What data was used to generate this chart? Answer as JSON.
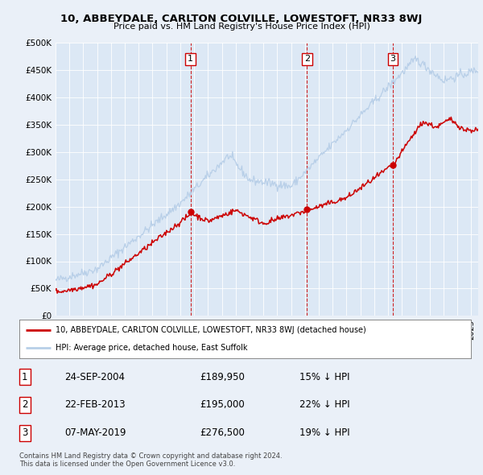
{
  "title1": "10, ABBEYDALE, CARLTON COLVILLE, LOWESTOFT, NR33 8WJ",
  "title2": "Price paid vs. HM Land Registry's House Price Index (HPI)",
  "hpi_label": "HPI: Average price, detached house, East Suffolk",
  "property_label": "10, ABBEYDALE, CARLTON COLVILLE, LOWESTOFT, NR33 8WJ (detached house)",
  "hpi_color": "#b8cfe8",
  "property_color": "#cc0000",
  "background_color": "#eaf0f8",
  "plot_bg_color": "#dce8f5",
  "sale_year_nums": [
    2004.733,
    2013.143,
    2019.352
  ],
  "sale_prices": [
    189950,
    195000,
    276500
  ],
  "sale_labels": [
    "1",
    "2",
    "3"
  ],
  "sale_info": [
    [
      "1",
      "24-SEP-2004",
      "£189,950",
      "15% ↓ HPI"
    ],
    [
      "2",
      "22-FEB-2013",
      "£195,000",
      "22% ↓ HPI"
    ],
    [
      "3",
      "07-MAY-2019",
      "£276,500",
      "19% ↓ HPI"
    ]
  ],
  "footer1": "Contains HM Land Registry data © Crown copyright and database right 2024.",
  "footer2": "This data is licensed under the Open Government Licence v3.0.",
  "ylim": [
    0,
    500000
  ],
  "yticks": [
    0,
    50000,
    100000,
    150000,
    200000,
    250000,
    300000,
    350000,
    400000,
    450000,
    500000
  ],
  "ytick_labels": [
    "£0",
    "£50K",
    "£100K",
    "£150K",
    "£200K",
    "£250K",
    "£300K",
    "£350K",
    "£400K",
    "£450K",
    "£500K"
  ],
  "xmin": 1995,
  "xmax": 2025.5
}
